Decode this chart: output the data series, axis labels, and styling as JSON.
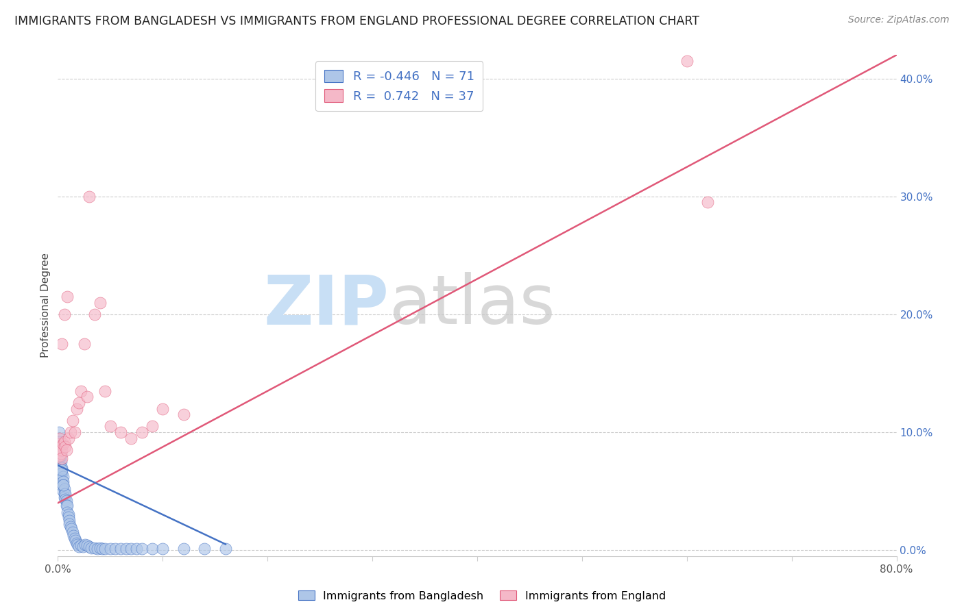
{
  "title": "IMMIGRANTS FROM BANGLADESH VS IMMIGRANTS FROM ENGLAND PROFESSIONAL DEGREE CORRELATION CHART",
  "source": "Source: ZipAtlas.com",
  "ylabel": "Professional Degree",
  "xlim": [
    0.0,
    0.8
  ],
  "ylim": [
    -0.005,
    0.42
  ],
  "yticks": [
    0.0,
    0.1,
    0.2,
    0.3,
    0.4
  ],
  "ytick_labels": [
    "",
    "10.0%",
    "20.0%",
    "30.0%",
    "40.0%"
  ],
  "right_ytick_labels": [
    "0.0%",
    "10.0%",
    "20.0%",
    "30.0%",
    "40.0%"
  ],
  "xticks": [
    0.0,
    0.1,
    0.2,
    0.3,
    0.4,
    0.5,
    0.6,
    0.7,
    0.8
  ],
  "bangladesh_R": -0.446,
  "bangladesh_N": 71,
  "england_R": 0.742,
  "england_N": 37,
  "bangladesh_color": "#aec6e8",
  "england_color": "#f5b8c8",
  "bangladesh_line_color": "#4472c4",
  "england_line_color": "#e05878",
  "title_fontsize": 12.5,
  "source_fontsize": 10,
  "label_fontsize": 11,
  "tick_fontsize": 11,
  "right_tick_color": "#4472c4",
  "grid_color": "#cccccc",
  "background_color": "#ffffff",
  "bangladesh_x": [
    0.001,
    0.001,
    0.001,
    0.001,
    0.001,
    0.002,
    0.002,
    0.002,
    0.002,
    0.003,
    0.003,
    0.003,
    0.003,
    0.004,
    0.004,
    0.004,
    0.004,
    0.005,
    0.005,
    0.005,
    0.005,
    0.006,
    0.006,
    0.006,
    0.007,
    0.007,
    0.008,
    0.008,
    0.009,
    0.009,
    0.01,
    0.01,
    0.011,
    0.011,
    0.012,
    0.013,
    0.014,
    0.015,
    0.016,
    0.017,
    0.018,
    0.019,
    0.02,
    0.022,
    0.024,
    0.026,
    0.028,
    0.03,
    0.032,
    0.035,
    0.038,
    0.04,
    0.042,
    0.045,
    0.05,
    0.055,
    0.06,
    0.065,
    0.07,
    0.075,
    0.08,
    0.09,
    0.1,
    0.12,
    0.14,
    0.16,
    0.001,
    0.002,
    0.003,
    0.004,
    0.005
  ],
  "bangladesh_y": [
    0.095,
    0.09,
    0.085,
    0.08,
    0.075,
    0.088,
    0.082,
    0.078,
    0.072,
    0.075,
    0.07,
    0.068,
    0.065,
    0.07,
    0.065,
    0.06,
    0.055,
    0.062,
    0.058,
    0.055,
    0.05,
    0.052,
    0.048,
    0.045,
    0.048,
    0.043,
    0.042,
    0.038,
    0.038,
    0.032,
    0.03,
    0.028,
    0.025,
    0.022,
    0.02,
    0.018,
    0.015,
    0.012,
    0.01,
    0.008,
    0.006,
    0.005,
    0.003,
    0.004,
    0.003,
    0.005,
    0.004,
    0.003,
    0.002,
    0.002,
    0.001,
    0.002,
    0.001,
    0.001,
    0.001,
    0.001,
    0.001,
    0.001,
    0.001,
    0.001,
    0.001,
    0.001,
    0.001,
    0.001,
    0.001,
    0.001,
    0.1,
    0.092,
    0.08,
    0.068,
    0.055
  ],
  "england_x": [
    0.001,
    0.001,
    0.002,
    0.002,
    0.003,
    0.003,
    0.004,
    0.004,
    0.005,
    0.006,
    0.007,
    0.008,
    0.01,
    0.012,
    0.014,
    0.016,
    0.018,
    0.02,
    0.022,
    0.025,
    0.028,
    0.03,
    0.035,
    0.04,
    0.045,
    0.05,
    0.06,
    0.07,
    0.08,
    0.09,
    0.1,
    0.12,
    0.6,
    0.62,
    0.004,
    0.006,
    0.009
  ],
  "england_y": [
    0.09,
    0.085,
    0.095,
    0.08,
    0.088,
    0.082,
    0.085,
    0.078,
    0.09,
    0.092,
    0.088,
    0.085,
    0.095,
    0.1,
    0.11,
    0.1,
    0.12,
    0.125,
    0.135,
    0.175,
    0.13,
    0.3,
    0.2,
    0.21,
    0.135,
    0.105,
    0.1,
    0.095,
    0.1,
    0.105,
    0.12,
    0.115,
    0.415,
    0.295,
    0.175,
    0.2,
    0.215
  ],
  "england_line_x0": 0.0,
  "england_line_y0": 0.04,
  "england_line_x1": 0.8,
  "england_line_y1": 0.42,
  "bangladesh_line_x0": 0.0,
  "bangladesh_line_y0": 0.072,
  "bangladesh_line_x1": 0.16,
  "bangladesh_line_y1": 0.005
}
